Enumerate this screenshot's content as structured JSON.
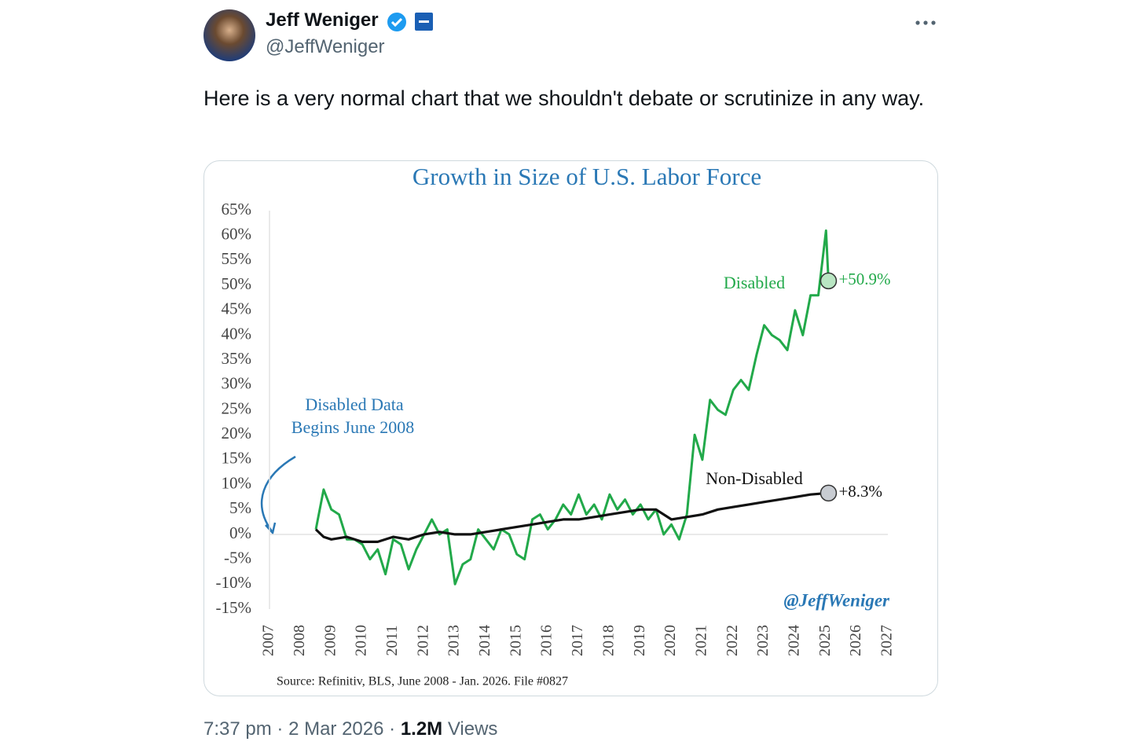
{
  "tweet": {
    "name": "Jeff Weniger",
    "handle": "@JeffWeniger",
    "text": "Here is a very normal chart that we shouldn't debate or scrutinize in any way.",
    "time": "7:37 pm",
    "separator": "·",
    "date": "2 Mar 2026",
    "views_count": "1.2M",
    "views_label": "Views"
  },
  "chart_data": {
    "type": "line",
    "title": "Growth in Size of U.S. Labor Force",
    "xlim": [
      2007,
      2027
    ],
    "xticks": [
      2007,
      2008,
      2009,
      2010,
      2011,
      2012,
      2013,
      2014,
      2015,
      2016,
      2017,
      2018,
      2019,
      2020,
      2021,
      2022,
      2023,
      2024,
      2025,
      2026,
      2027
    ],
    "ylim": [
      -15,
      65
    ],
    "yticks": [
      {
        "value": -15,
        "label": "-15%"
      },
      {
        "value": -10,
        "label": "-10%"
      },
      {
        "value": -5,
        "label": "-5%"
      },
      {
        "value": 0,
        "label": "0%"
      },
      {
        "value": 5,
        "label": "5%"
      },
      {
        "value": 10,
        "label": "10%"
      },
      {
        "value": 15,
        "label": "15%"
      },
      {
        "value": 20,
        "label": "20%"
      },
      {
        "value": 25,
        "label": "25%"
      },
      {
        "value": 30,
        "label": "30%"
      },
      {
        "value": 35,
        "label": "35%"
      },
      {
        "value": 40,
        "label": "40%"
      },
      {
        "value": 45,
        "label": "45%"
      },
      {
        "value": 50,
        "label": "50%"
      },
      {
        "value": 55,
        "label": "55%"
      },
      {
        "value": 60,
        "label": "60%"
      },
      {
        "value": 65,
        "label": "65%"
      }
    ],
    "series": [
      {
        "name": "Disabled",
        "color": "#22a94a",
        "x": [
          2008.5,
          2008.75,
          2009.0,
          2009.25,
          2009.5,
          2009.75,
          2010.0,
          2010.25,
          2010.5,
          2010.75,
          2011.0,
          2011.25,
          2011.5,
          2011.75,
          2012.0,
          2012.25,
          2012.5,
          2012.75,
          2013.0,
          2013.25,
          2013.5,
          2013.75,
          2014.0,
          2014.25,
          2014.5,
          2014.75,
          2015.0,
          2015.25,
          2015.5,
          2015.75,
          2016.0,
          2016.25,
          2016.5,
          2016.75,
          2017.0,
          2017.25,
          2017.5,
          2017.75,
          2018.0,
          2018.25,
          2018.5,
          2018.75,
          2019.0,
          2019.25,
          2019.5,
          2019.75,
          2020.0,
          2020.25,
          2020.5,
          2020.75,
          2021.0,
          2021.25,
          2021.5,
          2021.75,
          2022.0,
          2022.25,
          2022.5,
          2022.75,
          2023.0,
          2023.25,
          2023.5,
          2023.75,
          2024.0,
          2024.25,
          2024.5,
          2024.75,
          2025.0,
          2025.08
        ],
        "values": [
          1,
          9,
          5,
          4,
          -1,
          -1,
          -2,
          -5,
          -3,
          -8,
          -1,
          -2,
          -7,
          -3,
          0,
          3,
          0,
          1,
          -10,
          -6,
          -5,
          1,
          -1,
          -3,
          1,
          0,
          -4,
          -5,
          3,
          4,
          1,
          3,
          6,
          4,
          8,
          4,
          6,
          3,
          8,
          5,
          7,
          4,
          6,
          3,
          5,
          0,
          2,
          -1,
          4,
          20,
          15,
          27,
          25,
          24,
          29,
          31,
          29,
          36,
          42,
          40,
          39,
          37,
          45,
          40,
          48,
          48,
          61,
          50.9
        ],
        "value_labels": [
          null,
          null,
          null,
          null,
          null,
          null,
          null,
          null,
          null,
          null,
          null,
          null,
          null,
          null,
          null,
          null,
          null,
          null,
          null,
          null,
          null,
          null,
          null,
          null,
          null,
          null,
          null,
          null,
          null,
          null,
          null,
          null,
          null,
          null,
          null,
          null,
          null,
          null,
          null,
          null,
          null,
          null,
          null,
          null,
          null,
          null,
          null,
          null,
          null,
          null,
          null,
          null,
          null,
          null,
          null,
          null,
          null,
          null,
          null,
          null,
          null,
          null,
          null,
          null,
          null,
          null,
          null,
          "+50.9%"
        ]
      },
      {
        "name": "Non-Disabled",
        "color": "#111111",
        "x": [
          2008.5,
          2008.75,
          2009.0,
          2009.5,
          2010.0,
          2010.5,
          2011.0,
          2011.5,
          2012.0,
          2012.5,
          2013.0,
          2013.5,
          2014.0,
          2014.5,
          2015.0,
          2015.5,
          2016.0,
          2016.5,
          2017.0,
          2017.5,
          2018.0,
          2018.5,
          2019.0,
          2019.5,
          2020.0,
          2020.5,
          2021.0,
          2021.5,
          2022.0,
          2022.5,
          2023.0,
          2023.5,
          2024.0,
          2024.5,
          2025.08
        ],
        "values": [
          1,
          -0.5,
          -1,
          -0.5,
          -1.5,
          -1.5,
          -0.5,
          -1,
          0,
          0.5,
          0,
          0,
          0.5,
          1,
          1.5,
          2,
          2.5,
          3,
          3,
          3.5,
          4,
          4.5,
          5,
          5,
          3,
          3.5,
          4,
          5,
          5.5,
          6,
          6.5,
          7,
          7.5,
          8,
          8.3
        ],
        "value_labels": [
          null,
          null,
          null,
          null,
          null,
          null,
          null,
          null,
          null,
          null,
          null,
          null,
          null,
          null,
          null,
          null,
          null,
          null,
          null,
          null,
          null,
          null,
          null,
          null,
          null,
          null,
          null,
          null,
          null,
          null,
          null,
          null,
          null,
          null,
          "+8.3%"
        ]
      }
    ],
    "annotations": [
      "Disabled Data",
      "Begins June 2008"
    ],
    "watermark": "@JeffWeniger",
    "source": "Source: Refinitiv, BLS, June 2008 - Jan. 2026. File #0827"
  }
}
